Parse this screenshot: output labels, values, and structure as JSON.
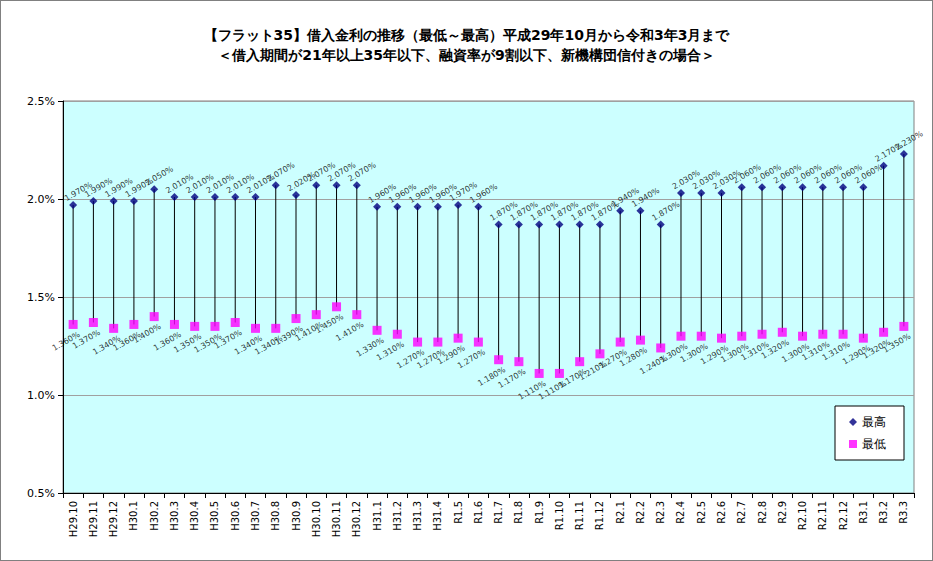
{
  "chart_data": {
    "type": "scatter",
    "title": "【フラット35】借入金利の推移（最低～最高）平成29年10月から令和3年3月まで",
    "subtitle": "＜借入期間が21年以上35年以下、融資率が9割以下、新機構団信付きの場合＞",
    "categories": [
      "H29.10",
      "H29.11",
      "H29.12",
      "H30.1",
      "H30.2",
      "H30.3",
      "H30.4",
      "H30.5",
      "H30.6",
      "H30.7",
      "H30.8",
      "H30.9",
      "H30.10",
      "H30.11",
      "H30.12",
      "H31.1",
      "H31.2",
      "H31.3",
      "H31.4",
      "R1.5",
      "R1.6",
      "R1.7",
      "R1.8",
      "R1.9",
      "R1.10",
      "R1.11",
      "R1.12",
      "R2.1",
      "R2.2",
      "R2.3",
      "R2.4",
      "R2.5",
      "R2.6",
      "R2.7",
      "R2.8",
      "R2.9",
      "R2.10",
      "R2.11",
      "R2.12",
      "R3.1",
      "R3.2",
      "R3.3"
    ],
    "series": [
      {
        "name": "最高",
        "color": "#000080",
        "marker": "diamond",
        "values": [
          1.97,
          1.99,
          1.99,
          1.99,
          2.05,
          2.01,
          2.01,
          2.01,
          2.01,
          2.01,
          2.07,
          2.02,
          2.07,
          2.07,
          2.07,
          1.96,
          1.96,
          1.96,
          1.96,
          1.97,
          1.96,
          1.87,
          1.87,
          1.87,
          1.87,
          1.87,
          1.87,
          1.94,
          1.94,
          1.87,
          2.03,
          2.03,
          2.03,
          2.06,
          2.06,
          2.06,
          2.06,
          2.06,
          2.06,
          2.06,
          2.17,
          2.23
        ],
        "value_labels": [
          "1.970%",
          "1.990%",
          "1.990%",
          "1.990%",
          "2.050%",
          "2.010%",
          "2.010%",
          "2.010%",
          "2.010%",
          "2.010%",
          "2.070%",
          "2.020%",
          "2.070%",
          "2.070%",
          "2.070%",
          "1.960%",
          "1.960%",
          "1.960%",
          "1.960%",
          "1.970%",
          "1.960%",
          "1.870%",
          "1.870%",
          "1.870%",
          "1.870%",
          "1.870%",
          "1.870%",
          "1.940%",
          "1.940%",
          "1.870%",
          "2.030%",
          "2.030%",
          "2.030%",
          "2.060%",
          "2.060%",
          "2.060%",
          "2.060%",
          "2.060%",
          "2.060%",
          "2.060%",
          "2.170%",
          "2.230%"
        ]
      },
      {
        "name": "最低",
        "color": "#ff00ff",
        "marker": "square",
        "values": [
          1.36,
          1.37,
          1.34,
          1.36,
          1.4,
          1.36,
          1.35,
          1.35,
          1.37,
          1.34,
          1.34,
          1.39,
          1.41,
          1.45,
          1.41,
          1.33,
          1.31,
          1.27,
          1.27,
          1.29,
          1.27,
          1.18,
          1.17,
          1.11,
          1.11,
          1.17,
          1.21,
          1.27,
          1.28,
          1.24,
          1.3,
          1.3,
          1.29,
          1.3,
          1.31,
          1.32,
          1.3,
          1.31,
          1.31,
          1.29,
          1.32,
          1.35
        ],
        "value_labels": [
          "1.360%",
          "1.370%",
          "1.340%",
          "1.360%",
          "1.400%",
          "1.360%",
          "1.350%",
          "1.350%",
          "1.370%",
          "1.340%",
          "1.340%",
          "1.390%",
          "1.410%",
          "1.450%",
          "1.410%",
          "1.330%",
          "1.310%",
          "1.270%",
          "1.270%",
          "1.290%",
          "1.270%",
          "1.180%",
          "1.170%",
          "1.110%",
          "1.110%",
          "1.170%",
          "1.210%",
          "1.270%",
          "1.280%",
          "1.240%",
          "1.300%",
          "1.300%",
          "1.290%",
          "1.300%",
          "1.310%",
          "1.320%",
          "1.300%",
          "1.310%",
          "1.310%",
          "1.290%",
          "1.320%",
          "1.350%"
        ]
      }
    ],
    "ylim": [
      0.5,
      2.5
    ],
    "yticks": [
      {
        "value": 0.5,
        "label": "0.5%"
      },
      {
        "value": 1.0,
        "label": "1.0%"
      },
      {
        "value": 1.5,
        "label": "1.5%"
      },
      {
        "value": 2.0,
        "label": "2.0%"
      },
      {
        "value": 2.5,
        "label": "2.5%"
      }
    ],
    "grid": true,
    "legend": "lower right",
    "data_labels": true
  }
}
